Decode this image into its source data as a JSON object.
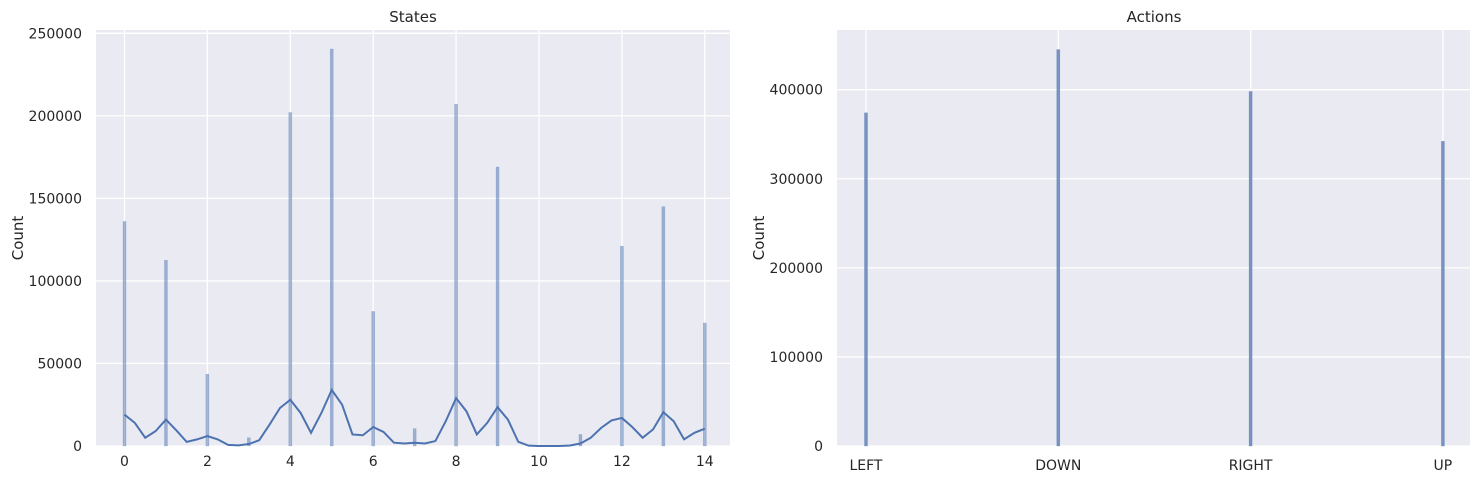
{
  "colors": {
    "panel_bg": "#EAEAF2",
    "grid": "#FFFFFF",
    "bar": "#4C72B0",
    "kde": "#4C72B0",
    "text": "#262626"
  },
  "chart_data": [
    {
      "type": "bar",
      "subtype": "histogram-with-kde",
      "title": "States",
      "xlabel": "",
      "ylabel": "Count",
      "xlim": [
        -0.7,
        14.7
      ],
      "ylim": [
        0,
        252000
      ],
      "x_ticks": [
        0,
        2,
        4,
        6,
        8,
        10,
        12,
        14
      ],
      "y_ticks": [
        0,
        50000,
        100000,
        150000,
        200000,
        250000
      ],
      "grid": true,
      "bars": [
        {
          "x": 0,
          "value": 136000
        },
        {
          "x": 1,
          "value": 112500
        },
        {
          "x": 2,
          "value": 43500
        },
        {
          "x": 3,
          "value": 5000
        },
        {
          "x": 4,
          "value": 202000
        },
        {
          "x": 5,
          "value": 240500
        },
        {
          "x": 6,
          "value": 81500
        },
        {
          "x": 7,
          "value": 10500
        },
        {
          "x": 8,
          "value": 207000
        },
        {
          "x": 9,
          "value": 169000
        },
        {
          "x": 11,
          "value": 7000
        },
        {
          "x": 12,
          "value": 121000
        },
        {
          "x": 13,
          "value": 145000
        },
        {
          "x": 14,
          "value": 74500
        }
      ],
      "kde": {
        "x": [
          0,
          0.25,
          0.5,
          0.75,
          1,
          1.25,
          1.5,
          1.75,
          2,
          2.25,
          2.5,
          2.75,
          3,
          3.25,
          3.5,
          3.75,
          4,
          4.25,
          4.5,
          4.75,
          5,
          5.25,
          5.5,
          5.75,
          6,
          6.25,
          6.5,
          6.75,
          7,
          7.25,
          7.5,
          7.75,
          8,
          8.25,
          8.5,
          8.75,
          9,
          9.25,
          9.5,
          9.75,
          10,
          10.25,
          10.5,
          10.75,
          11,
          11.25,
          11.5,
          11.75,
          12,
          12.25,
          12.5,
          12.75,
          13,
          13.25,
          13.5,
          13.75,
          14
        ],
        "y": [
          19000,
          14000,
          5000,
          9000,
          16000,
          9500,
          2500,
          4000,
          6000,
          4000,
          700,
          400,
          1200,
          3500,
          13000,
          23000,
          28000,
          20000,
          8000,
          20000,
          34000,
          25000,
          7000,
          6500,
          11500,
          8500,
          2000,
          1500,
          2000,
          1500,
          3000,
          15000,
          29000,
          21000,
          7000,
          14000,
          23500,
          16000,
          2500,
          200,
          0,
          0,
          0,
          300,
          1500,
          5000,
          11000,
          15500,
          17000,
          11500,
          5000,
          10000,
          20500,
          15000,
          4000,
          8000,
          10500
        ]
      }
    },
    {
      "type": "bar",
      "title": "Actions",
      "xlabel": "",
      "ylabel": "Count",
      "categories": [
        "LEFT",
        "DOWN",
        "RIGHT",
        "UP"
      ],
      "values": [
        374000,
        445000,
        398000,
        342000
      ],
      "ylim": [
        0,
        467000
      ],
      "y_ticks": [
        0,
        100000,
        200000,
        300000,
        400000
      ],
      "grid": true
    }
  ]
}
